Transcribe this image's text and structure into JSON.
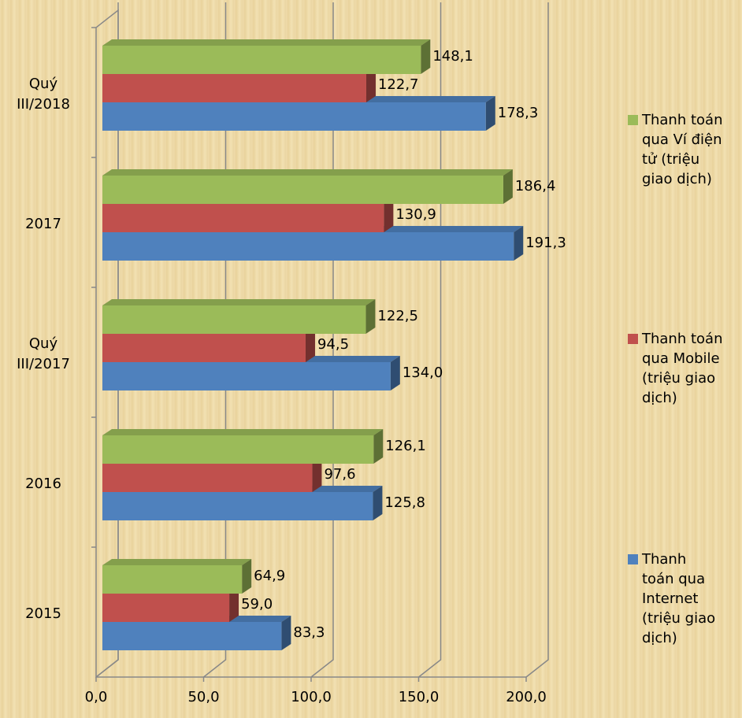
{
  "chart_data": {
    "type": "bar3d_horizontal",
    "categories": [
      "Quý III/2018",
      "2017",
      "Quý III/2017",
      "2016",
      "2015"
    ],
    "series": [
      {
        "name": "Thanh toán qua Internet (triệu giao dịch)",
        "color": "#4f81bd",
        "values": [
          178.3,
          191.3,
          134.0,
          125.8,
          83.3
        ],
        "value_labels": [
          "178,3",
          "191,3",
          "134,0",
          "125,8",
          "83,3"
        ]
      },
      {
        "name": "Thanh toán qua Mobile (triệu giao dịch)",
        "color": "#c0504d",
        "values": [
          122.7,
          130.9,
          94.5,
          97.6,
          59.0
        ],
        "value_labels": [
          "122,7",
          "130,9",
          "94,5",
          "97,6",
          "59,0"
        ]
      },
      {
        "name": "Thanh toán qua Ví điện tử (triệu giao dịch)",
        "color": "#9bbb59",
        "values": [
          148.1,
          186.4,
          122.5,
          126.1,
          64.9
        ],
        "value_labels": [
          "148,1",
          "186,4",
          "122,5",
          "126,1",
          "64,9"
        ]
      }
    ],
    "xlim": [
      0,
      200
    ],
    "xticks": [
      {
        "value": 0,
        "label": "0,0"
      },
      {
        "value": 50,
        "label": "50,0"
      },
      {
        "value": 100,
        "label": "100,0"
      },
      {
        "value": 150,
        "label": "150,0"
      },
      {
        "value": 200,
        "label": "200,0"
      }
    ],
    "grid": true,
    "legend": "right"
  }
}
